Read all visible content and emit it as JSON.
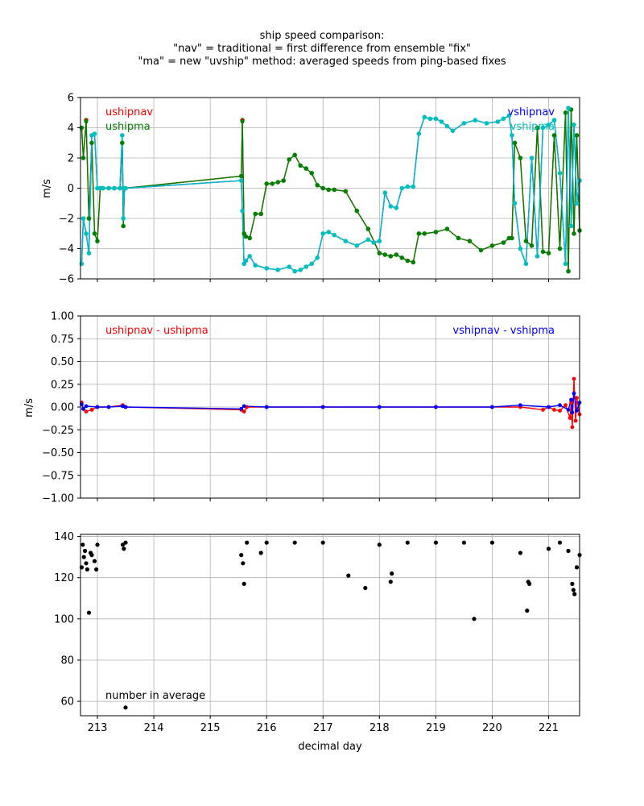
{
  "title": {
    "line1": "ship speed comparison:",
    "line2": "\"nav\" = traditional = first difference from ensemble \"fix\"",
    "line3": "\"ma\" = new \"uvship\" method: averaged speeds from ping-based fixes"
  },
  "colors": {
    "red": "#ff0000",
    "green": "#008000",
    "blue": "#0000ff",
    "cyan": "#00bfbf",
    "black": "#000000"
  },
  "chart_data": [
    {
      "type": "line",
      "ylabel": "m/s",
      "xlim": [
        212.7,
        221.55
      ],
      "ylim": [
        -6,
        6
      ],
      "yticks": [
        6,
        4,
        2,
        0,
        -2,
        -4,
        -6
      ],
      "grid": true,
      "legend_left": [
        "ushipnav",
        "ushipma"
      ],
      "legend_right": [
        "vshipnav",
        "vshipma"
      ],
      "series": [
        {
          "name": "ushipnav",
          "color": "#ff0000",
          "x": [
            212.72,
            212.75,
            212.8,
            212.85,
            212.9,
            212.95,
            213.0,
            213.05,
            213.1,
            213.2,
            213.3,
            213.4,
            213.44,
            213.46,
            213.48,
            213.5,
            215.55,
            215.57,
            215.6,
            215.63,
            215.7,
            215.8,
            215.9,
            216.0,
            216.1,
            216.2,
            216.3,
            216.4,
            216.5,
            216.6,
            216.7,
            216.8,
            216.9,
            217.0,
            217.1,
            217.2,
            217.4,
            217.6,
            217.8,
            218.0,
            218.1,
            218.2,
            218.3,
            218.4,
            218.5,
            218.6,
            218.7,
            218.8,
            219.0,
            219.2,
            219.4,
            219.6,
            219.8,
            220.0,
            220.2,
            220.3,
            220.35,
            220.4,
            220.5,
            220.6,
            220.7,
            220.8,
            220.9,
            221.0,
            221.1,
            221.2,
            221.3,
            221.35,
            221.4,
            221.45,
            221.5,
            221.55
          ],
          "y": [
            4.0,
            2.0,
            4.5,
            -2.0,
            3.0,
            -3.0,
            -3.5,
            0.0,
            0.0,
            0.0,
            0.0,
            0.0,
            3.0,
            -2.5,
            0.0,
            0.0,
            0.8,
            4.5,
            -3.0,
            -3.2,
            -3.3,
            -1.7,
            -1.7,
            0.3,
            0.3,
            0.4,
            0.5,
            1.9,
            2.2,
            1.5,
            1.3,
            1.0,
            0.2,
            0.0,
            -0.1,
            -0.1,
            -0.2,
            -1.5,
            -2.7,
            -4.3,
            -4.4,
            -4.5,
            -4.4,
            -4.6,
            -4.8,
            -4.9,
            -3.0,
            -3.0,
            -2.9,
            -2.7,
            -3.3,
            -3.5,
            -4.1,
            -3.8,
            -3.6,
            -3.3,
            -3.3,
            3.0,
            2.0,
            -3.5,
            -3.8,
            4.0,
            -4.2,
            -4.3,
            3.5,
            -4.0,
            5.0,
            -5.5,
            5.2,
            -3.0,
            3.5,
            -2.8
          ]
        },
        {
          "name": "ushipma",
          "color": "#008000",
          "x": [
            212.72,
            212.75,
            212.8,
            212.85,
            212.9,
            212.95,
            213.0,
            213.05,
            213.1,
            213.2,
            213.3,
            213.4,
            213.44,
            213.46,
            213.48,
            213.5,
            215.55,
            215.57,
            215.6,
            215.63,
            215.7,
            215.8,
            215.9,
            216.0,
            216.1,
            216.2,
            216.3,
            216.4,
            216.5,
            216.6,
            216.7,
            216.8,
            216.9,
            217.0,
            217.1,
            217.2,
            217.4,
            217.6,
            217.8,
            218.0,
            218.1,
            218.2,
            218.3,
            218.4,
            218.5,
            218.6,
            218.7,
            218.8,
            219.0,
            219.2,
            219.4,
            219.6,
            219.8,
            220.0,
            220.2,
            220.3,
            220.35,
            220.4,
            220.5,
            220.6,
            220.7,
            220.8,
            220.9,
            221.0,
            221.1,
            221.2,
            221.3,
            221.35,
            221.4,
            221.45,
            221.5,
            221.55
          ],
          "y": [
            4.0,
            2.0,
            4.4,
            -2.0,
            3.0,
            -3.0,
            -3.5,
            0.0,
            0.0,
            0.0,
            0.0,
            0.0,
            3.0,
            -2.5,
            0.0,
            0.0,
            0.8,
            4.4,
            -3.0,
            -3.2,
            -3.3,
            -1.7,
            -1.7,
            0.3,
            0.3,
            0.4,
            0.5,
            1.9,
            2.2,
            1.5,
            1.3,
            1.0,
            0.2,
            0.0,
            -0.1,
            -0.1,
            -0.2,
            -1.5,
            -2.7,
            -4.3,
            -4.4,
            -4.5,
            -4.4,
            -4.6,
            -4.8,
            -4.9,
            -3.0,
            -3.0,
            -2.9,
            -2.7,
            -3.3,
            -3.5,
            -4.1,
            -3.8,
            -3.6,
            -3.3,
            -3.3,
            3.0,
            2.0,
            -3.5,
            -3.8,
            4.0,
            -4.2,
            -4.3,
            3.5,
            -4.0,
            5.0,
            -5.5,
            5.2,
            -3.0,
            3.5,
            -2.8
          ]
        },
        {
          "name": "vshipnav",
          "color": "#0000ff",
          "x": [
            212.72,
            212.75,
            212.8,
            212.85,
            212.9,
            212.95,
            213.0,
            213.05,
            213.1,
            213.2,
            213.3,
            213.4,
            213.44,
            213.46,
            213.48,
            213.5,
            215.55,
            215.57,
            215.6,
            215.63,
            215.7,
            215.8,
            216.0,
            216.2,
            216.4,
            216.5,
            216.6,
            216.7,
            216.8,
            216.9,
            217.0,
            217.1,
            217.2,
            217.4,
            217.6,
            217.8,
            217.9,
            218.0,
            218.1,
            218.2,
            218.3,
            218.4,
            218.5,
            218.6,
            218.7,
            218.8,
            218.9,
            219.0,
            219.1,
            219.2,
            219.3,
            219.5,
            219.7,
            219.9,
            220.1,
            220.2,
            220.3,
            220.35,
            220.4,
            220.5,
            220.6,
            220.7,
            220.8,
            220.9,
            221.0,
            221.1,
            221.2,
            221.3,
            221.35,
            221.4,
            221.45,
            221.5,
            221.55
          ],
          "y": [
            -5.0,
            -2.0,
            -3.0,
            -4.3,
            3.5,
            3.6,
            0.0,
            0.0,
            0.0,
            0.0,
            0.0,
            0.0,
            3.5,
            -2.0,
            0.0,
            0.0,
            0.5,
            -1.5,
            -5.0,
            -4.8,
            -4.5,
            -5.1,
            -5.3,
            -5.4,
            -5.2,
            -5.5,
            -5.4,
            -5.2,
            -5.0,
            -4.6,
            -3.0,
            -2.9,
            -3.1,
            -3.5,
            -3.8,
            -3.4,
            -3.6,
            -3.5,
            -0.3,
            -1.2,
            -1.3,
            0.0,
            0.1,
            0.1,
            3.6,
            4.7,
            4.6,
            4.6,
            4.4,
            4.1,
            3.8,
            4.3,
            4.5,
            4.3,
            4.4,
            4.6,
            4.8,
            3.5,
            -1.0,
            -4.0,
            -5.0,
            2.0,
            -4.5,
            4.0,
            4.2,
            4.5,
            1.0,
            -5.0,
            5.3,
            -2.5,
            4.2,
            -1.0,
            0.5
          ]
        },
        {
          "name": "vshipma",
          "color": "#00bfbf",
          "x": [
            212.72,
            212.75,
            212.8,
            212.85,
            212.9,
            212.95,
            213.0,
            213.05,
            213.1,
            213.2,
            213.3,
            213.4,
            213.44,
            213.46,
            213.48,
            213.5,
            215.55,
            215.57,
            215.6,
            215.63,
            215.7,
            215.8,
            216.0,
            216.2,
            216.4,
            216.5,
            216.6,
            216.7,
            216.8,
            216.9,
            217.0,
            217.1,
            217.2,
            217.4,
            217.6,
            217.8,
            217.9,
            218.0,
            218.1,
            218.2,
            218.3,
            218.4,
            218.5,
            218.6,
            218.7,
            218.8,
            218.9,
            219.0,
            219.1,
            219.2,
            219.3,
            219.5,
            219.7,
            219.9,
            220.1,
            220.2,
            220.3,
            220.35,
            220.4,
            220.5,
            220.6,
            220.7,
            220.8,
            220.9,
            221.0,
            221.1,
            221.2,
            221.3,
            221.35,
            221.4,
            221.45,
            221.5,
            221.55
          ],
          "y": [
            -5.0,
            -2.0,
            -3.0,
            -4.3,
            3.5,
            3.6,
            0.0,
            0.0,
            0.0,
            0.0,
            0.0,
            0.0,
            3.5,
            -2.0,
            0.0,
            0.0,
            0.5,
            -1.5,
            -5.0,
            -4.8,
            -4.5,
            -5.1,
            -5.3,
            -5.4,
            -5.2,
            -5.5,
            -5.4,
            -5.2,
            -5.0,
            -4.6,
            -3.0,
            -2.9,
            -3.1,
            -3.5,
            -3.8,
            -3.4,
            -3.6,
            -3.5,
            -0.3,
            -1.2,
            -1.3,
            0.0,
            0.1,
            0.1,
            3.6,
            4.7,
            4.6,
            4.6,
            4.4,
            4.1,
            3.8,
            4.3,
            4.5,
            4.3,
            4.4,
            4.6,
            4.8,
            3.5,
            -1.0,
            -4.0,
            -5.0,
            2.0,
            -4.5,
            4.0,
            4.2,
            4.5,
            1.0,
            -5.0,
            5.3,
            -2.5,
            4.2,
            -1.0,
            0.5
          ]
        }
      ]
    },
    {
      "type": "line",
      "ylabel": "m/s",
      "xlim": [
        212.7,
        221.55
      ],
      "ylim": [
        -1.0,
        1.0
      ],
      "yticks": [
        1.0,
        0.75,
        0.5,
        0.25,
        0.0,
        -0.25,
        -0.5,
        -0.75,
        -1.0
      ],
      "ytick_labels": [
        "1.00",
        "0.75",
        "0.50",
        "0.25",
        "0.00",
        "−0.25",
        "−0.50",
        "−0.75",
        "−1.00"
      ],
      "grid": true,
      "legend_left": [
        "ushipnav - ushipma"
      ],
      "legend_right": [
        "vshipnav - vshipma"
      ],
      "series": [
        {
          "name": "ushipnav - ushipma",
          "color": "#ff0000",
          "x": [
            212.72,
            212.75,
            212.8,
            212.9,
            213.0,
            213.2,
            213.45,
            213.5,
            215.55,
            215.6,
            215.65,
            216.0,
            217.0,
            218.0,
            219.0,
            220.0,
            220.5,
            220.9,
            221.0,
            221.1,
            221.2,
            221.3,
            221.38,
            221.4,
            221.42,
            221.45,
            221.48,
            221.5,
            221.55
          ],
          "y": [
            0.05,
            -0.02,
            -0.05,
            -0.03,
            0.0,
            0.0,
            0.02,
            0.0,
            -0.03,
            -0.05,
            0.0,
            0.0,
            0.0,
            0.0,
            0.0,
            0.0,
            0.0,
            -0.03,
            0.0,
            -0.03,
            -0.04,
            0.02,
            -0.12,
            0.05,
            -0.22,
            0.31,
            -0.15,
            0.1,
            -0.08
          ]
        },
        {
          "name": "vshipnav - vshipma",
          "color": "#0000ff",
          "x": [
            212.72,
            212.75,
            212.8,
            213.0,
            213.2,
            213.45,
            213.5,
            215.55,
            215.6,
            216.0,
            217.0,
            218.0,
            219.0,
            220.0,
            220.5,
            221.0,
            221.2,
            221.35,
            221.4,
            221.42,
            221.45,
            221.5,
            221.55
          ],
          "y": [
            0.03,
            -0.02,
            0.01,
            0.0,
            0.0,
            0.01,
            0.0,
            -0.02,
            0.01,
            0.0,
            0.0,
            0.0,
            0.0,
            0.0,
            0.02,
            0.0,
            0.02,
            -0.03,
            0.08,
            -0.06,
            0.15,
            -0.04,
            0.05
          ]
        }
      ]
    },
    {
      "type": "scatter",
      "xlabel": "decimal day",
      "xlim": [
        212.7,
        221.55
      ],
      "ylim": [
        53,
        141
      ],
      "yticks": [
        140,
        120,
        100,
        80,
        60
      ],
      "xticks": [
        213,
        214,
        215,
        216,
        217,
        218,
        219,
        220,
        221
      ],
      "grid": true,
      "annotation": "number in average",
      "series": [
        {
          "name": "number in average",
          "color": "#000000",
          "x": [
            212.72,
            212.74,
            212.76,
            212.78,
            212.8,
            212.82,
            212.85,
            212.9,
            212.95,
            213.0,
            213.45,
            213.47,
            213.5,
            215.55,
            215.58,
            215.6,
            215.65,
            215.9,
            216.0,
            216.5,
            217.0,
            217.45,
            217.75,
            218.0,
            218.2,
            218.22,
            218.5,
            219.0,
            219.5,
            219.68,
            220.0,
            220.5,
            220.62,
            220.64,
            220.66,
            221.0,
            221.2,
            221.35,
            221.42,
            221.44,
            221.46,
            221.5,
            221.55,
            212.88,
            212.98,
            213.5
          ],
          "y": [
            125,
            136,
            130,
            133,
            127,
            124,
            103,
            131,
            128,
            136,
            136,
            134,
            137,
            131,
            127,
            117,
            137,
            132,
            137,
            137,
            137,
            121,
            115,
            136,
            118,
            122,
            137,
            137,
            137,
            100,
            137,
            132,
            104,
            118,
            117,
            134,
            137,
            133,
            117,
            114,
            112,
            125,
            131,
            132,
            124,
            57
          ]
        }
      ]
    }
  ]
}
